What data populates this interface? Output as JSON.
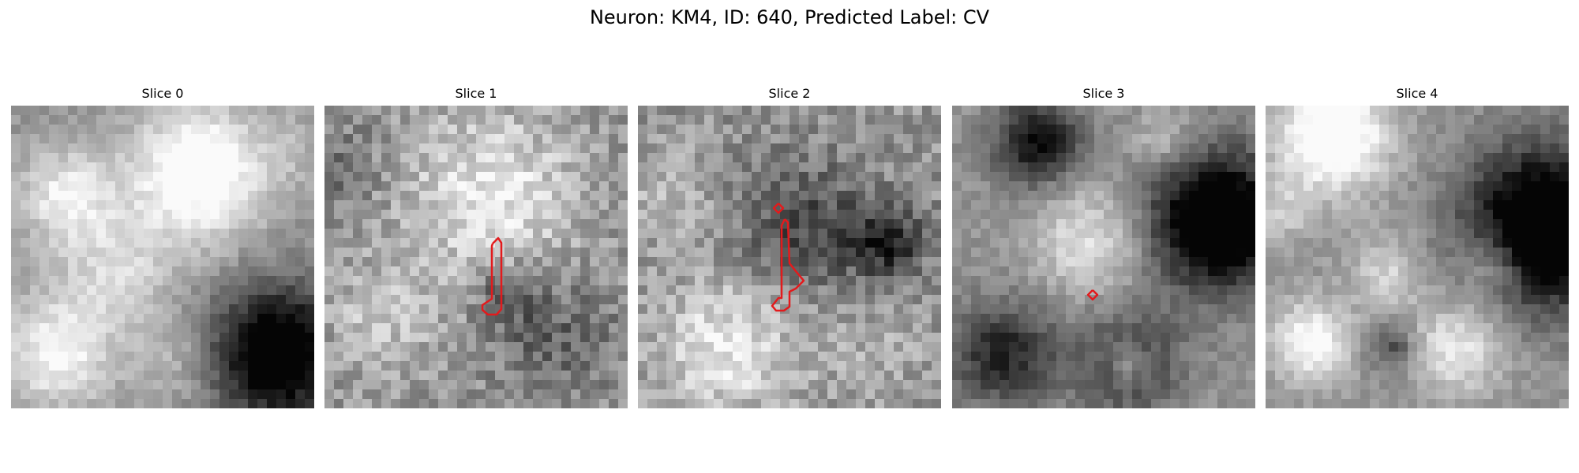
{
  "figure": {
    "title": "Neuron: KM4, ID: 640, Predicted Label: CV"
  },
  "panels": [
    {
      "title": "Slice 0",
      "has_contour": false,
      "seed": 11,
      "palette": "grayscale",
      "contour_color": "#e31a1c"
    },
    {
      "title": "Slice 1",
      "has_contour": true,
      "seed": 23,
      "palette": "grayscale",
      "contour_color": "#e31a1c"
    },
    {
      "title": "Slice 2",
      "has_contour": true,
      "seed": 37,
      "palette": "grayscale",
      "contour_color": "#e31a1c"
    },
    {
      "title": "Slice 3",
      "has_contour": true,
      "seed": 41,
      "palette": "grayscale",
      "contour_color": "#e31a1c"
    },
    {
      "title": "Slice 4",
      "has_contour": false,
      "seed": 53,
      "palette": "grayscale",
      "contour_color": "#e31a1c"
    }
  ]
}
